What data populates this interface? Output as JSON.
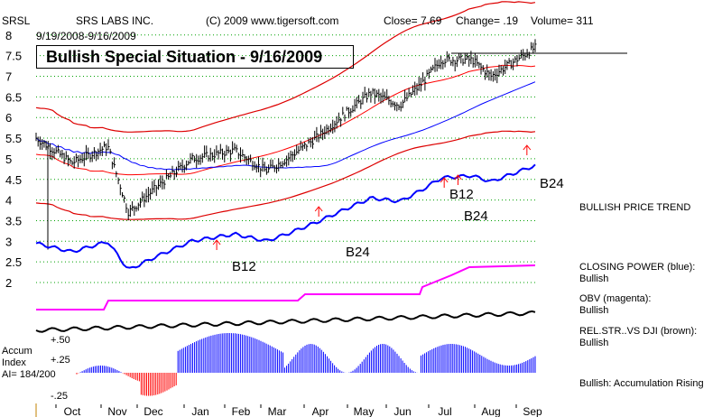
{
  "header": {
    "ticker": "SRSL",
    "company": "SRS LABS INC.",
    "source": "(C) 2009 www.tigersoft.com",
    "close_label": "Close=  7.69",
    "change_label": "Change= .19",
    "volume_label": "Volume= 311",
    "date_range": "9/19/2008-9/16/2009"
  },
  "title": "Bullish Special Situation - 9/16/2009",
  "accum_label_1": "Accum",
  "accum_label_2": "Index",
  "ai_label": "AI= 184/200",
  "right_labels": {
    "trend": "BULLISH PRICE TREND",
    "cp_1": "CLOSING POWER (blue):",
    "cp_2": "Bullish",
    "obv_1": "OBV (magenta):",
    "obv_2": "Bullish",
    "rs_1": "REL.STR..VS DJI (brown):",
    "rs_2": "Bullish",
    "accum": "Bullish: Accumulation Rising"
  },
  "colors": {
    "price_bars": "#000000",
    "ma_red": "#ff0000",
    "ma_blue": "#0000ff",
    "band_red": "#dd0000",
    "closing_power": "#0000ff",
    "obv": "#ff00ff",
    "rel_strength": "#000000",
    "accum_positive": "#0000ff",
    "accum_negative": "#ff0000",
    "grid": "#00a000"
  },
  "chart_data": {
    "type": "line",
    "title": "Bullish Special Situation - 9/16/2009",
    "x_months": [
      "Oct",
      "Nov",
      "Dec",
      "Jan",
      "Feb",
      "Mar",
      "Apr",
      "May",
      "Jun",
      "Jul",
      "Aug",
      "Sep"
    ],
    "y_ticks": [
      2,
      2.5,
      3,
      3.5,
      4,
      4.5,
      5,
      5.5,
      6,
      6.5,
      7,
      7.5,
      8
    ],
    "ylim": [
      2,
      8
    ],
    "grid": true,
    "price_close_samples": [
      {
        "date": "2008-09-19",
        "close": 5.5
      },
      {
        "date": "2008-10-15",
        "close": 4.9
      },
      {
        "date": "2008-11-10",
        "close": 5.3
      },
      {
        "date": "2008-11-25",
        "close": 3.7
      },
      {
        "date": "2008-12-15",
        "close": 4.3
      },
      {
        "date": "2009-01-10",
        "close": 5.0
      },
      {
        "date": "2009-02-10",
        "close": 5.2
      },
      {
        "date": "2009-03-05",
        "close": 4.7
      },
      {
        "date": "2009-03-20",
        "close": 5.0
      },
      {
        "date": "2009-04-10",
        "close": 5.5
      },
      {
        "date": "2009-05-05",
        "close": 6.2
      },
      {
        "date": "2009-05-20",
        "close": 6.6
      },
      {
        "date": "2009-06-10",
        "close": 6.3
      },
      {
        "date": "2009-06-25",
        "close": 6.8
      },
      {
        "date": "2009-07-10",
        "close": 7.4
      },
      {
        "date": "2009-08-01",
        "close": 7.4
      },
      {
        "date": "2009-08-15",
        "close": 7.0
      },
      {
        "date": "2009-09-16",
        "close": 7.69
      }
    ],
    "buy_signals": [
      {
        "label": "B12",
        "date": "2009-01-28"
      },
      {
        "label": "B24",
        "date": "2009-04-12"
      },
      {
        "label": "B12",
        "date": "2009-07-12"
      },
      {
        "label": "B24",
        "date": "2009-07-22"
      },
      {
        "label": "B24",
        "date": "2009-09-10"
      }
    ],
    "accum_ticks": [
      "+.50",
      "+.25",
      "-.25"
    ],
    "indicators": [
      "Closing Power",
      "OBV",
      "Rel. Strength vs DJI",
      "Accumulation Index"
    ]
  }
}
